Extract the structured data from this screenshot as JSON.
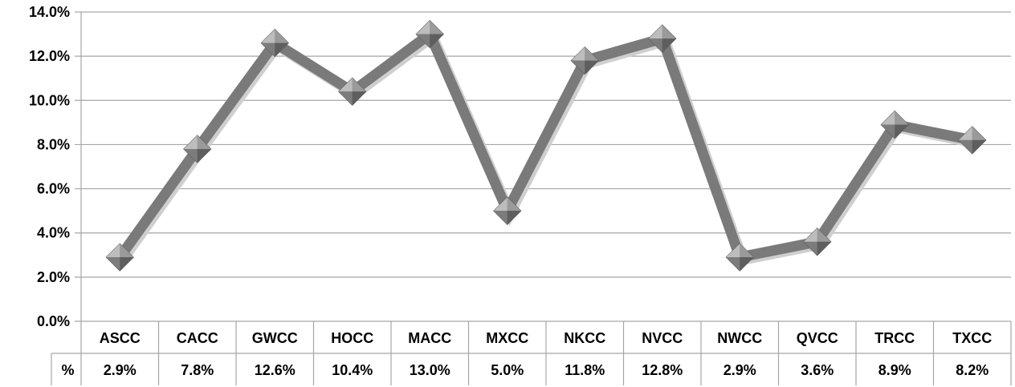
{
  "chart_data": {
    "type": "line",
    "title": "",
    "xlabel": "",
    "ylabel": "",
    "ylim": [
      0,
      14
    ],
    "y_ticks": [
      "0.0%",
      "2.0%",
      "4.0%",
      "6.0%",
      "8.0%",
      "10.0%",
      "12.0%",
      "14.0%"
    ],
    "grid": true,
    "categories": [
      "ASCC",
      "CACC",
      "GWCC",
      "HOCC",
      "MACC",
      "MXCC",
      "NKCC",
      "NVCC",
      "NWCC",
      "QVCC",
      "TRCC",
      "TXCC"
    ],
    "series": [
      {
        "name": "%",
        "values": [
          2.9,
          7.8,
          12.6,
          10.4,
          13.0,
          5.0,
          11.8,
          12.8,
          2.9,
          3.6,
          8.9,
          8.2
        ],
        "value_labels": [
          "2.9%",
          "7.8%",
          "12.6%",
          "10.4%",
          "13.0%",
          "5.0%",
          "11.8%",
          "12.8%",
          "2.9%",
          "3.6%",
          "8.9%",
          "8.2%"
        ]
      }
    ],
    "data_table": true,
    "colors": {
      "line": "#7a7a7a",
      "marker": "#707070",
      "grid": "#a6a6a6"
    }
  }
}
